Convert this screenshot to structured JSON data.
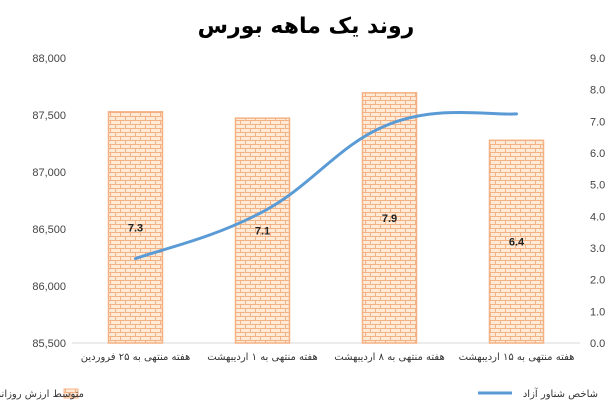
{
  "chart_data": {
    "type": "bar+line",
    "title": "روند یک ماهه بورس",
    "categories": [
      "هفته منتهی به ۲۵ فروردین",
      "هفته منتهی به ۱ اردیبهشت",
      "هفته منتهی به ۸ اردیبهشت",
      "هفته منتهی به ۱۵ اردیبهشت"
    ],
    "bar_series": {
      "name": "متوسط ارزش روزانه هرمعامله نرمال در بورس- نقدشوندگی (م.ریال)",
      "values": [
        7.3,
        7.1,
        7.9,
        6.4
      ],
      "color": "#F4B183",
      "axis": "right"
    },
    "line_series": {
      "name": "شاخص شناور آزاد",
      "values": [
        86240,
        86650,
        87420,
        87510
      ],
      "color": "#5B9BD5",
      "axis": "left"
    },
    "left_axis": {
      "ylim": [
        85500,
        88000
      ],
      "ticks": [
        "85,500",
        "86,000",
        "86,500",
        "87,000",
        "87,500",
        "88,000"
      ]
    },
    "right_axis": {
      "ylim": [
        0,
        9
      ],
      "ticks": [
        "0.0",
        "1.0",
        "2.0",
        "3.0",
        "4.0",
        "5.0",
        "6.0",
        "7.0",
        "8.0",
        "9.0"
      ]
    },
    "grid": "horizontal-none",
    "legend_position": "bottom"
  }
}
